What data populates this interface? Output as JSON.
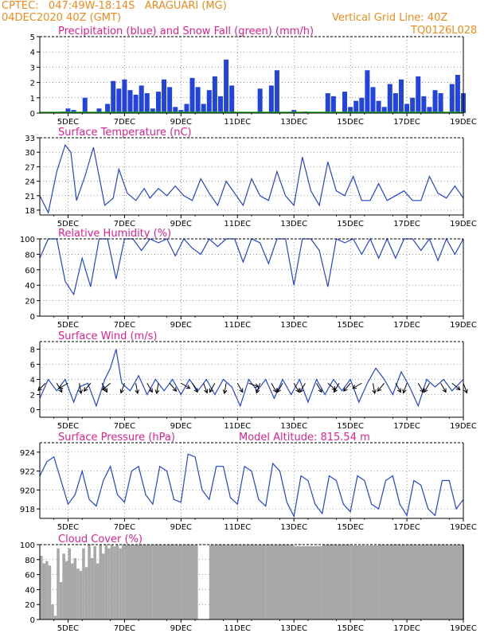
{
  "header": {
    "line1": "CPTEC:   047:49W-18:14S   ARAGUARI (MG)",
    "line2_left": "04DEC2020 40Z (GMT)",
    "line2_right": "Vertical Grid Line: 40Z",
    "line3_right": "TQ0126L028"
  },
  "colors": {
    "precip": "#2244dd",
    "snow": "#22aa22",
    "line": "#2244dd",
    "cloud": "#a8a8a8",
    "title": "#e0208f",
    "header": "#f08a1a"
  },
  "chart_data": [
    {
      "type": "bar",
      "title": "Precipitation (blue) and Snow Fall (green) (mm/h)",
      "x_tick_labels": [
        "5DEC",
        "7DEC",
        "9DEC",
        "11DEC",
        "13DEC",
        "15DEC",
        "17DEC",
        "19DEC"
      ],
      "ylim": [
        0,
        5
      ],
      "yticks": [
        0,
        1,
        2,
        3,
        4,
        5
      ],
      "grid": true,
      "x_range_days": [
        4.0,
        19.0
      ],
      "series": [
        {
          "name": "Precipitation",
          "color": "#2244dd",
          "x": [
            4.4,
            4.6,
            4.8,
            5.0,
            5.2,
            5.5,
            5.6,
            5.8,
            6.0,
            6.1,
            6.2,
            6.4,
            6.6,
            6.8,
            7.0,
            7.2,
            7.4,
            7.6,
            7.8,
            8.0,
            8.2,
            8.4,
            8.6,
            8.8,
            9.0,
            9.2,
            9.4,
            9.6,
            9.8,
            10.0,
            10.2,
            10.4,
            10.6,
            10.8,
            11.0,
            11.2,
            11.4,
            11.6,
            11.8,
            12.0,
            12.2,
            12.4,
            12.6,
            12.8,
            13.0,
            13.2,
            13.4,
            13.6,
            13.8,
            14.0,
            14.2,
            14.4,
            14.6,
            14.8,
            15.0,
            15.2,
            15.4,
            15.6,
            15.8,
            16.0,
            16.2,
            16.4,
            16.6,
            16.8,
            17.0,
            17.2,
            17.4,
            17.6,
            17.8,
            18.0,
            18.2,
            18.4,
            18.6,
            18.8,
            19.0
          ],
          "values": [
            0,
            0,
            0.1,
            0.3,
            0.2,
            0,
            1.0,
            0,
            0,
            0.3,
            0,
            0.6,
            2.1,
            1.6,
            2.2,
            1.5,
            1.2,
            1.8,
            1.3,
            0.3,
            1.4,
            2.2,
            1.7,
            0.4,
            0.2,
            0.6,
            2.3,
            1.7,
            0.6,
            1.5,
            2.4,
            1.1,
            3.5,
            1.8,
            0,
            0,
            0,
            0,
            1.6,
            0,
            1.8,
            2.8,
            0,
            0,
            0.2,
            0,
            0.1,
            0,
            0,
            0,
            1.3,
            1.1,
            0,
            1.4,
            0.4,
            0.8,
            1.0,
            2.8,
            1.7,
            0.8,
            0.4,
            1.9,
            1.3,
            2.2,
            0.6,
            1.0,
            2.4,
            1.1,
            0.4,
            1.5,
            1.3,
            0,
            1.9,
            2.5,
            1.3
          ]
        },
        {
          "name": "Snow Fall",
          "color": "#22aa22",
          "values": [
            0
          ]
        }
      ]
    },
    {
      "type": "line",
      "title": "Surface Temperature (nC)",
      "ylim": [
        17,
        33
      ],
      "yticks": [
        18,
        21,
        24,
        27,
        30,
        33
      ],
      "grid": true,
      "x": [
        4.0,
        4.3,
        4.6,
        4.9,
        5.1,
        5.3,
        5.6,
        5.9,
        6.1,
        6.3,
        6.6,
        6.8,
        7.1,
        7.4,
        7.7,
        7.9,
        8.2,
        8.5,
        8.8,
        9.1,
        9.4,
        9.7,
        10.0,
        10.3,
        10.6,
        10.9,
        11.2,
        11.5,
        11.8,
        12.1,
        12.4,
        12.7,
        13.0,
        13.3,
        13.6,
        13.9,
        14.2,
        14.5,
        14.8,
        15.1,
        15.4,
        15.7,
        16.0,
        16.3,
        16.6,
        16.9,
        17.2,
        17.5,
        17.8,
        18.1,
        18.4,
        18.7,
        19.0
      ],
      "series": [
        {
          "name": "",
          "values": [
            21,
            17.5,
            26,
            31.5,
            30,
            20,
            25,
            31,
            25,
            19,
            20.5,
            26.5,
            21.5,
            20,
            22.5,
            20.5,
            22.5,
            21,
            23,
            21,
            20,
            24.5,
            21.5,
            19,
            24,
            21.5,
            19,
            24.5,
            21,
            20,
            26,
            21,
            19,
            29,
            22,
            19,
            28,
            22,
            21,
            25,
            20,
            20,
            23.5,
            20,
            21,
            22,
            20,
            20,
            25,
            21.5,
            20.5,
            23,
            20.5
          ]
        }
      ]
    },
    {
      "type": "line",
      "title": "Relative Humidity (%)",
      "ylim": [
        0,
        100
      ],
      "yticks": [
        0,
        20,
        40,
        60,
        80,
        100
      ],
      "grid": true,
      "x": [
        4.0,
        4.3,
        4.6,
        4.9,
        5.2,
        5.5,
        5.8,
        6.1,
        6.4,
        6.7,
        7.0,
        7.3,
        7.6,
        7.9,
        8.2,
        8.5,
        8.8,
        9.1,
        9.4,
        9.7,
        10.0,
        10.3,
        10.6,
        10.9,
        11.2,
        11.5,
        11.8,
        12.1,
        12.4,
        12.7,
        13.0,
        13.3,
        13.6,
        13.9,
        14.2,
        14.5,
        14.8,
        15.1,
        15.4,
        15.7,
        16.0,
        16.3,
        16.6,
        16.9,
        17.2,
        17.5,
        17.8,
        18.1,
        18.4,
        18.7,
        19.0
      ],
      "series": [
        {
          "name": "",
          "values": [
            75,
            100,
            100,
            45,
            28,
            75,
            38,
            100,
            100,
            48,
            100,
            100,
            85,
            100,
            95,
            100,
            78,
            100,
            88,
            80,
            100,
            90,
            100,
            100,
            70,
            100,
            95,
            68,
            100,
            100,
            40,
            100,
            100,
            85,
            38,
            100,
            95,
            100,
            80,
            100,
            75,
            100,
            75,
            100,
            100,
            85,
            100,
            72,
            100,
            80,
            100
          ]
        }
      ]
    },
    {
      "type": "line",
      "title": "Surface Wind (m/s)",
      "ylim": [
        -1,
        9
      ],
      "yticks": [
        0,
        2,
        4,
        6,
        8
      ],
      "grid": true,
      "x": [
        4.0,
        4.3,
        4.6,
        4.9,
        5.2,
        5.4,
        5.7,
        6.0,
        6.3,
        6.5,
        6.7,
        6.9,
        7.2,
        7.5,
        7.8,
        8.1,
        8.4,
        8.7,
        9.0,
        9.3,
        9.6,
        9.9,
        10.2,
        10.5,
        10.8,
        11.1,
        11.4,
        11.7,
        12.0,
        12.3,
        12.6,
        12.9,
        13.2,
        13.5,
        13.8,
        14.1,
        14.4,
        14.7,
        15.0,
        15.3,
        15.6,
        15.9,
        16.2,
        16.5,
        16.8,
        17.1,
        17.4,
        17.7,
        18.0,
        18.3,
        18.6,
        19.0
      ],
      "series": [
        {
          "name": "",
          "values": [
            1.5,
            4,
            2.5,
            4,
            1,
            3,
            3.5,
            0.5,
            4,
            5.5,
            8,
            3.5,
            2.5,
            4.5,
            2,
            4,
            2.5,
            4,
            2,
            4,
            2.5,
            4,
            2,
            4,
            3,
            0.5,
            4,
            2.5,
            4,
            1.5,
            4,
            2,
            4,
            1,
            4,
            2,
            4,
            2.5,
            4,
            1,
            3.5,
            5.5,
            4,
            2,
            5,
            3,
            0.5,
            4,
            3,
            4,
            2.5,
            4
          ]
        }
      ],
      "wind_vectors": [
        [
          4.2,
          225
        ],
        [
          4.6,
          300
        ],
        [
          5.0,
          210
        ],
        [
          5.4,
          280
        ],
        [
          5.8,
          230
        ],
        [
          6.2,
          300
        ],
        [
          6.5,
          220
        ],
        [
          7.0,
          250
        ],
        [
          7.4,
          280
        ],
        [
          7.8,
          300
        ],
        [
          8.2,
          260
        ],
        [
          8.6,
          310
        ],
        [
          9.0,
          330
        ],
        [
          9.4,
          300
        ],
        [
          9.8,
          290
        ],
        [
          10.2,
          240
        ],
        [
          10.6,
          260
        ],
        [
          11.0,
          300
        ],
        [
          11.4,
          340
        ],
        [
          11.8,
          250
        ],
        [
          12.2,
          300
        ],
        [
          12.6,
          240
        ],
        [
          13.0,
          300
        ],
        [
          13.4,
          240
        ],
        [
          13.8,
          300
        ],
        [
          14.2,
          320
        ],
        [
          14.6,
          240
        ],
        [
          15.0,
          230
        ],
        [
          15.4,
          210
        ],
        [
          15.8,
          280
        ],
        [
          16.2,
          230
        ],
        [
          16.6,
          300
        ],
        [
          17.0,
          250
        ],
        [
          17.4,
          300
        ],
        [
          17.8,
          240
        ],
        [
          18.2,
          300
        ],
        [
          18.6,
          320
        ],
        [
          19.0,
          290
        ]
      ]
    },
    {
      "type": "line",
      "title": "Surface Pressure (hPa)",
      "annotation": "Model Altitude: 815.54 m",
      "ylim": [
        917,
        925
      ],
      "yticks": [
        918,
        920,
        922,
        924
      ],
      "grid": true,
      "x": [
        4.0,
        4.25,
        4.5,
        4.75,
        5.0,
        5.25,
        5.5,
        5.75,
        6.0,
        6.25,
        6.5,
        6.75,
        7.0,
        7.25,
        7.5,
        7.75,
        8.0,
        8.25,
        8.5,
        8.75,
        9.0,
        9.25,
        9.5,
        9.75,
        10.0,
        10.25,
        10.5,
        10.75,
        11.0,
        11.25,
        11.5,
        11.75,
        12.0,
        12.25,
        12.5,
        12.75,
        13.0,
        13.25,
        13.5,
        13.75,
        14.0,
        14.25,
        14.5,
        14.75,
        15.0,
        15.25,
        15.5,
        15.75,
        16.0,
        16.25,
        16.5,
        16.75,
        17.0,
        17.25,
        17.5,
        17.75,
        18.0,
        18.25,
        18.5,
        18.75,
        19.0
      ],
      "series": [
        {
          "name": "",
          "values": [
            921.5,
            923,
            923.5,
            921,
            918.5,
            919.5,
            922,
            919,
            918.3,
            921,
            922.5,
            919.5,
            918.7,
            922,
            922.5,
            919.5,
            918.5,
            922.5,
            922,
            919,
            918.7,
            923.8,
            923.5,
            920,
            919,
            922.5,
            922.5,
            919.2,
            918.5,
            922.5,
            922,
            919,
            918.3,
            922.8,
            922,
            918.7,
            917.2,
            921.5,
            921,
            918.5,
            917.5,
            921.5,
            921,
            918.5,
            917.7,
            921.5,
            921,
            918.5,
            918,
            921,
            921.5,
            918.5,
            917.3,
            921,
            920.5,
            918,
            917.3,
            921,
            921,
            918,
            919
          ]
        }
      ]
    },
    {
      "type": "bar",
      "title": "Cloud Cover (%)",
      "ylim": [
        0,
        100
      ],
      "yticks": [
        0,
        20,
        40,
        60,
        80,
        100
      ],
      "grid": true,
      "x": [
        4.0,
        4.1,
        4.2,
        4.3,
        4.4,
        4.5,
        4.6,
        4.7,
        4.8,
        4.9,
        5.0,
        5.1,
        5.2,
        5.3,
        5.4,
        5.5,
        5.6,
        5.7,
        5.8,
        5.9,
        6.0,
        6.1,
        6.2,
        6.3,
        6.4,
        6.5,
        6.6,
        6.7,
        6.8,
        6.9,
        7.0,
        8.0,
        9.0,
        9.5,
        9.6,
        10.0,
        11.0,
        12.0,
        13.0,
        14.0,
        15.0,
        16.0,
        17.0,
        18.0,
        19.0
      ],
      "series": [
        {
          "name": "",
          "values": [
            85,
            75,
            78,
            72,
            20,
            5,
            95,
            50,
            88,
            78,
            95,
            75,
            82,
            68,
            65,
            95,
            70,
            100,
            82,
            98,
            75,
            100,
            88,
            100,
            95,
            100,
            98,
            100,
            95,
            100,
            100,
            100,
            100,
            100,
            0,
            100,
            100,
            100,
            98,
            100,
            99,
            100,
            100,
            100,
            100
          ]
        }
      ]
    }
  ]
}
